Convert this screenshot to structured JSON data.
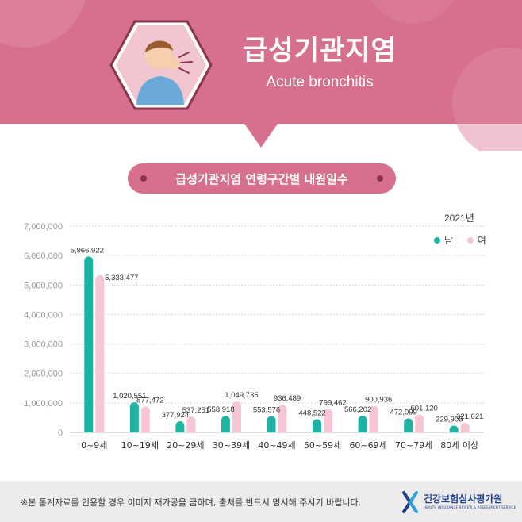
{
  "header": {
    "title_ko": "급성기관지염",
    "title_en": "Acute bronchitis"
  },
  "subtitle": "급성기관지염 연령구간별 내원일수",
  "year_label": "2021년",
  "legend": [
    {
      "label": "남",
      "color": "#1db4a4"
    },
    {
      "label": "여",
      "color": "#f7c6d4"
    }
  ],
  "chart_data": {
    "type": "bar",
    "title": "급성기관지염 연령구간별 내원일수",
    "categories": [
      "0~9세",
      "10~19세",
      "20~29세",
      "30~39세",
      "40~49세",
      "50~59세",
      "60~69세",
      "70~79세",
      "80세 이상"
    ],
    "series": [
      {
        "name": "남",
        "color": "#1db4a4",
        "values": [
          5966922,
          1020551,
          377924,
          558918,
          553576,
          448522,
          566202,
          472099,
          229905
        ]
      },
      {
        "name": "여",
        "color": "#f7c6d4",
        "values": [
          5333477,
          877472,
          537251,
          1049735,
          936489,
          799462,
          900936,
          601120,
          321621
        ]
      }
    ],
    "value_labels": {
      "남": [
        "5,966,922",
        "1,020,551",
        "377,924",
        "558,918",
        "553,576",
        "448,522",
        "566,202",
        "472,099",
        "229,905"
      ],
      "여": [
        "5,333,477",
        "877,472",
        "537,251",
        "1,049,735",
        "936,489",
        "799,462",
        "900,936",
        "601,120",
        "321,621"
      ]
    },
    "yticks": [
      "0",
      "1,000,000",
      "2,000,000",
      "3,000,000",
      "4,000,000",
      "5,000,000",
      "6,000,000",
      "7,000,000"
    ],
    "ylim": [
      0,
      7000000
    ],
    "grid": true,
    "legend_position": "top-right"
  },
  "footer": {
    "note": "※본 통계자료를 인용할 경우 이미지 재가공을 금하며, 출처를 반드시 명시해 주시기 바랍니다.",
    "logo_name": "건강보험심사평가원",
    "logo_sub": "HEALTH INSURANCE REVIEW & ASSESSMENT SERVICE"
  },
  "colors": {
    "banner": "#d6708c",
    "banner_light": "#e08aa2",
    "male": "#1db4a4",
    "female": "#f7c6d4"
  }
}
